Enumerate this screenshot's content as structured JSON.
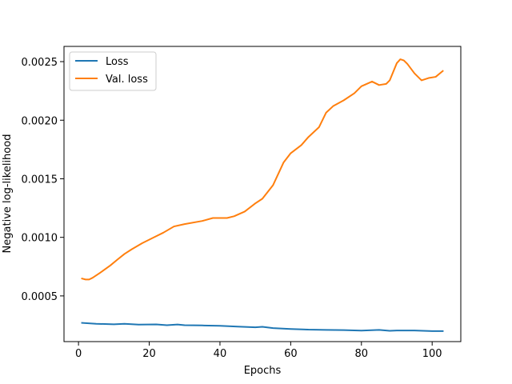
{
  "chart_data": {
    "type": "line",
    "title": "",
    "xlabel": "Epochs",
    "ylabel": "Negative log-likelihood",
    "xlim": [
      -4.1,
      108.1
    ],
    "ylim": [
      0.00011,
      0.00263
    ],
    "x_ticks": [
      0,
      20,
      40,
      60,
      80,
      100
    ],
    "x_tick_labels": [
      "0",
      "20",
      "40",
      "60",
      "80",
      "100"
    ],
    "y_ticks": [
      0.0005,
      0.001,
      0.0015,
      0.002,
      0.0025
    ],
    "y_tick_labels": [
      "0.0005",
      "0.0010",
      "0.0015",
      "0.0020",
      "0.0025"
    ],
    "grid": false,
    "legend_position": "top-left",
    "series": [
      {
        "name": "Loss",
        "color": "#1f77b4",
        "x": [
          1,
          5,
          10,
          13,
          17,
          22,
          25,
          28,
          30,
          35,
          40,
          45,
          50,
          52,
          55,
          60,
          65,
          70,
          75,
          80,
          85,
          88,
          90,
          95,
          100,
          103
        ],
        "y": [
          0.00027,
          0.000262,
          0.000258,
          0.000262,
          0.000255,
          0.000257,
          0.00025,
          0.000256,
          0.00025,
          0.000248,
          0.000245,
          0.000238,
          0.000232,
          0.000236,
          0.000225,
          0.000218,
          0.000212,
          0.00021,
          0.000208,
          0.000204,
          0.00021,
          0.000202,
          0.000205,
          0.000205,
          0.0002,
          0.0002
        ]
      },
      {
        "name": "Val. loss",
        "color": "#ff7f0e",
        "x": [
          1,
          2,
          3,
          4,
          6,
          9,
          11,
          13,
          15,
          18,
          21,
          24,
          27,
          30,
          35,
          38,
          42,
          44,
          47,
          50,
          52,
          55,
          58,
          60,
          63,
          65,
          68,
          70,
          72,
          75,
          78,
          80,
          83,
          85,
          87,
          88,
          90,
          91,
          92,
          93,
          95,
          97,
          99,
          101,
          103
        ],
        "y": [
          0.000648,
          0.00064,
          0.00064,
          0.000655,
          0.000695,
          0.00076,
          0.00081,
          0.000858,
          0.000897,
          0.00095,
          0.000995,
          0.00104,
          0.001093,
          0.001113,
          0.00114,
          0.001165,
          0.001165,
          0.00118,
          0.00122,
          0.00129,
          0.00133,
          0.001445,
          0.00164,
          0.001718,
          0.001787,
          0.001856,
          0.00194,
          0.002064,
          0.00212,
          0.00217,
          0.00223,
          0.00229,
          0.00233,
          0.0023,
          0.00231,
          0.00234,
          0.002487,
          0.00252,
          0.00251,
          0.00248,
          0.0024,
          0.00234,
          0.00236,
          0.00237,
          0.00242
        ]
      }
    ]
  }
}
